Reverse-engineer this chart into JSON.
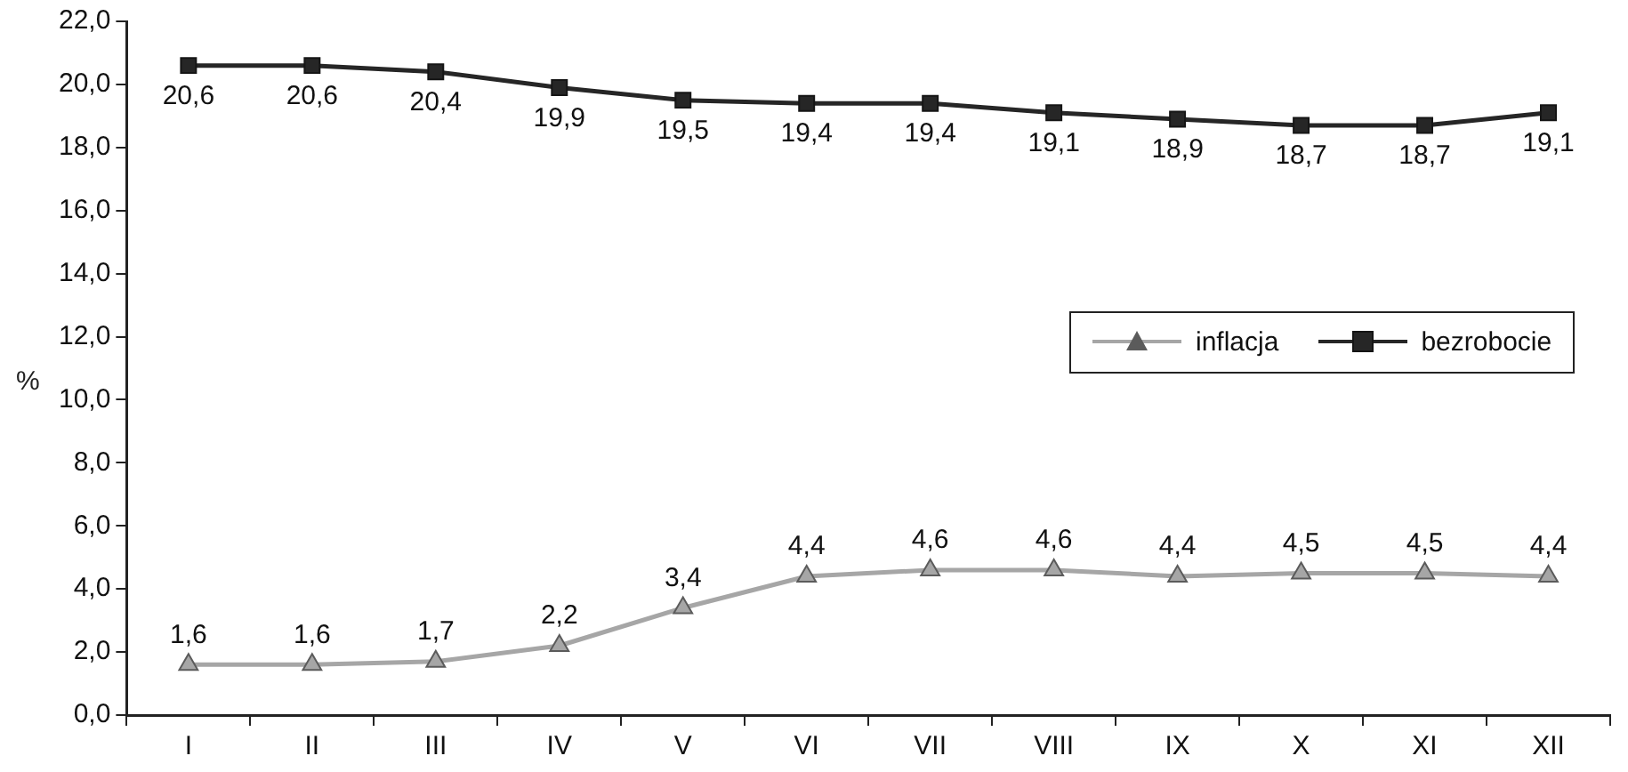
{
  "chart_data": {
    "type": "line",
    "ylabel": "%",
    "categories": [
      "I",
      "II",
      "III",
      "IV",
      "V",
      "VI",
      "VII",
      "VIII",
      "IX",
      "X",
      "XI",
      "XII"
    ],
    "series": [
      {
        "name": "inflacja",
        "color": "#a6a6a6",
        "marker": "triangle",
        "values": [
          1.6,
          1.6,
          1.7,
          2.2,
          3.4,
          4.4,
          4.6,
          4.6,
          4.4,
          4.5,
          4.5,
          4.4
        ],
        "value_labels": [
          "1,6",
          "1,6",
          "1,7",
          "2,2",
          "3,4",
          "4,4",
          "4,6",
          "4,6",
          "4,4",
          "4,5",
          "4,5",
          "4,4"
        ]
      },
      {
        "name": "bezrobocie",
        "color": "#262626",
        "marker": "square",
        "values": [
          20.6,
          20.6,
          20.4,
          19.9,
          19.5,
          19.4,
          19.4,
          19.1,
          18.9,
          18.7,
          18.7,
          19.1
        ],
        "value_labels": [
          "20,6",
          "20,6",
          "20,4",
          "19,9",
          "19,5",
          "19,4",
          "19,4",
          "19,1",
          "18,9",
          "18,7",
          "18,7",
          "19,1"
        ]
      }
    ],
    "ylim": [
      0,
      22
    ],
    "yticks": [
      {
        "value": 0,
        "label": "0,0"
      },
      {
        "value": 2,
        "label": "2,0"
      },
      {
        "value": 4,
        "label": "4,0"
      },
      {
        "value": 6,
        "label": "6,0"
      },
      {
        "value": 8,
        "label": "8,0"
      },
      {
        "value": 10,
        "label": "10,0"
      },
      {
        "value": 12,
        "label": "12,0"
      },
      {
        "value": 14,
        "label": "14,0"
      },
      {
        "value": 16,
        "label": "16,0"
      },
      {
        "value": 18,
        "label": "18,0"
      },
      {
        "value": 20,
        "label": "20,0"
      },
      {
        "value": 22,
        "label": "22,0"
      }
    ],
    "grid": false,
    "legend": "right",
    "line_style": "solid"
  }
}
